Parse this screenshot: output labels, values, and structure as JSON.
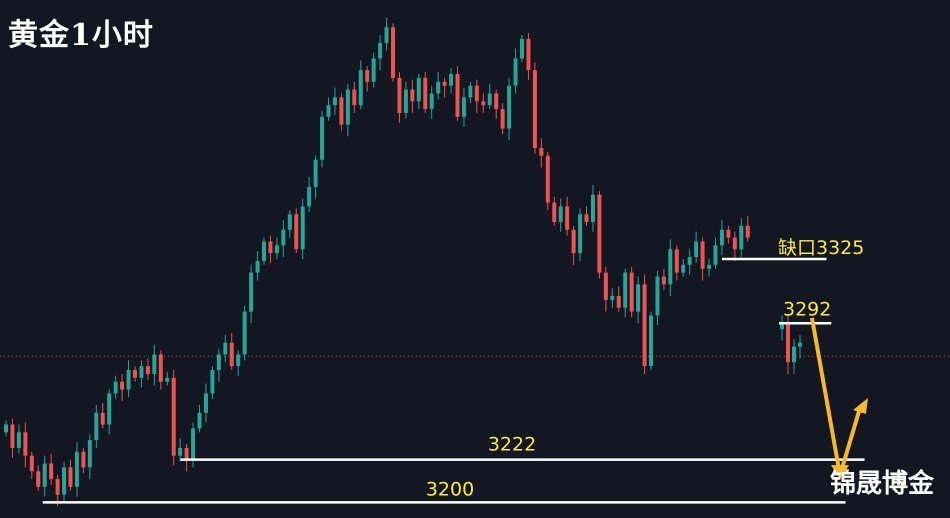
{
  "header": {
    "title": "黄金1小时"
  },
  "watermark": {
    "text": "锦晟博金"
  },
  "colors": {
    "background": "#131722",
    "up": "#26a69a",
    "down": "#ef5350",
    "level_line": "#ffffff",
    "label_text": "#ffeb3b",
    "arrow": "#f5b82e",
    "price_line": "#ef5350"
  },
  "chart_data": {
    "type": "candlestick",
    "ylim": [
      3192,
      3458
    ],
    "levels": [
      {
        "value": 3325,
        "label": "缺口3325",
        "x_from": 0.76,
        "x_to": 0.87
      },
      {
        "value": 3292,
        "label": "3292",
        "x_from": 0.82,
        "x_to": 0.875
      },
      {
        "value": 3222,
        "label": "3222",
        "x_from": 0.19,
        "x_to": 0.91
      },
      {
        "value": 3200,
        "label": "3200",
        "x_from": 0.045,
        "x_to": 0.89
      }
    ],
    "current_price": 3275,
    "candles_close": [
      3240,
      3228,
      3236,
      3224,
      3216,
      3208,
      3220,
      3212,
      3204,
      3218,
      3208,
      3226,
      3218,
      3232,
      3246,
      3240,
      3256,
      3262,
      3258,
      3268,
      3264,
      3270,
      3266,
      3276,
      3262,
      3264,
      3224,
      3228,
      3222,
      3238,
      3246,
      3256,
      3268,
      3276,
      3282,
      3270,
      3276,
      3298,
      3318,
      3324,
      3334,
      3328,
      3332,
      3340,
      3348,
      3330,
      3352,
      3362,
      3376,
      3398,
      3404,
      3408,
      3394,
      3412,
      3404,
      3422,
      3416,
      3428,
      3436,
      3444,
      3418,
      3400,
      3412,
      3406,
      3418,
      3402,
      3410,
      3416,
      3414,
      3420,
      3398,
      3408,
      3414,
      3406,
      3404,
      3410,
      3402,
      3392,
      3414,
      3428,
      3438,
      3422,
      3382,
      3378,
      3354,
      3344,
      3352,
      3340,
      3328,
      3348,
      3344,
      3358,
      3318,
      3304,
      3306,
      3300,
      3318,
      3298,
      3312,
      3270,
      3296,
      3316,
      3312,
      3330,
      3318,
      3322,
      3326,
      3334,
      3320,
      3322,
      3332,
      3340,
      3336,
      3330,
      3342,
      3336
    ],
    "pending_candles_close": [
      3292,
      3272,
      3280,
      3282
    ],
    "projection": [
      "down to 3222",
      "rebound"
    ]
  }
}
